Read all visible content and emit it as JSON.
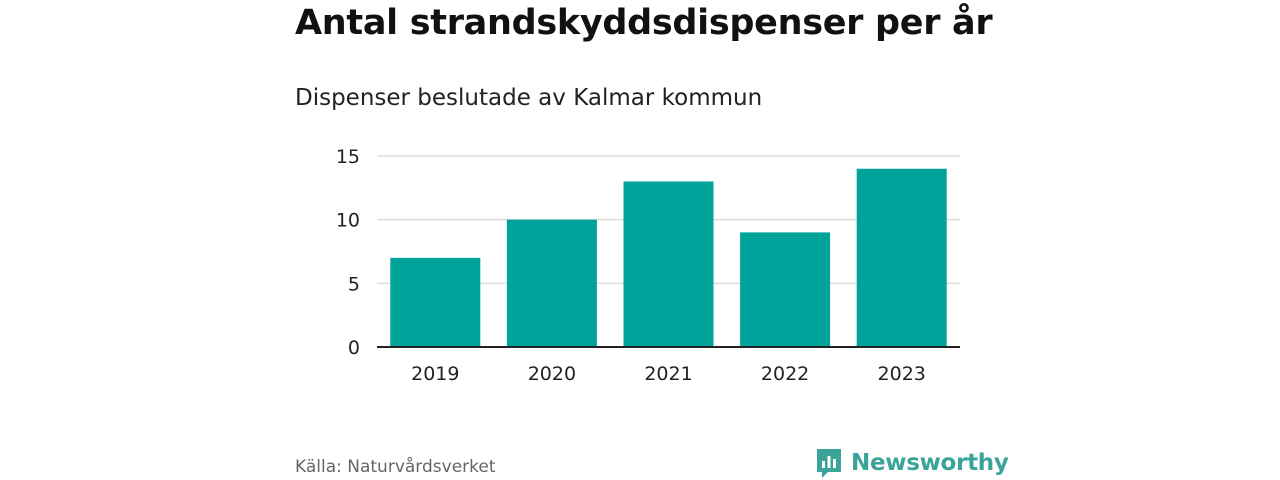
{
  "brand": {
    "name": "Newsworthy",
    "color": "#3aa39a"
  },
  "chart_data": {
    "type": "bar",
    "title": "Antal strandskyddsdispenser per år",
    "subtitle": "Dispenser beslutade av Kalmar kommun",
    "categories": [
      "2019",
      "2020",
      "2021",
      "2022",
      "2023"
    ],
    "values": [
      7,
      10,
      13,
      9,
      14
    ],
    "xlabel": "",
    "ylabel": "",
    "ylim": [
      0,
      15
    ],
    "yticks": [
      0,
      5,
      10,
      15
    ],
    "grid": true,
    "bar_color": "#00a39a",
    "source": "Källa: Naturvårdsverket"
  }
}
